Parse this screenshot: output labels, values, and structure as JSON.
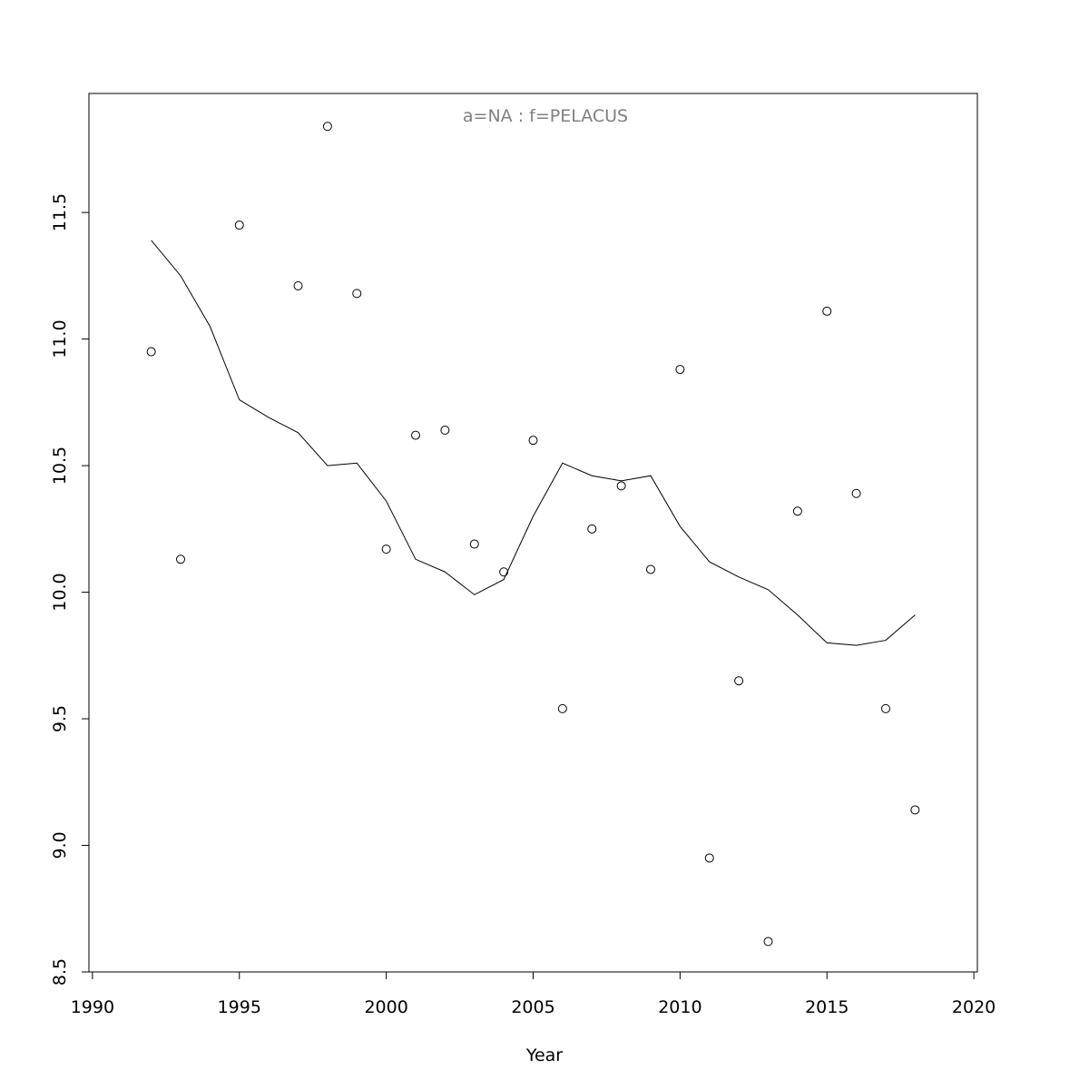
{
  "chart_data": {
    "type": "scatter",
    "title": "a=NA  :  f=PELACUS",
    "xlabel": "Year",
    "points": {
      "x": [
        1992,
        1993,
        1995,
        1997,
        1998,
        1999,
        2000,
        2001,
        2002,
        2003,
        2004,
        2005,
        2006,
        2007,
        2008,
        2009,
        2010,
        2011,
        2012,
        2013,
        2014,
        2015,
        2016,
        2017,
        2018
      ],
      "values": [
        10.95,
        10.13,
        11.45,
        11.21,
        11.84,
        11.18,
        10.17,
        10.62,
        10.64,
        10.19,
        10.08,
        10.6,
        9.54,
        10.25,
        10.42,
        10.09,
        10.88,
        8.95,
        9.65,
        8.62,
        10.32,
        11.11,
        10.39,
        9.54,
        9.14
      ]
    },
    "trend": {
      "x": [
        1992,
        1993,
        1994,
        1995,
        1996,
        1997,
        1998,
        1999,
        2000,
        2001,
        2002,
        2003,
        2004,
        2005,
        2006,
        2007,
        2008,
        2009,
        2010,
        2011,
        2012,
        2013,
        2014,
        2015,
        2016,
        2017,
        2018
      ],
      "values": [
        11.39,
        11.25,
        11.05,
        10.76,
        10.69,
        10.63,
        10.5,
        10.51,
        10.36,
        10.13,
        10.08,
        9.99,
        10.05,
        10.3,
        10.51,
        10.46,
        10.44,
        10.46,
        10.26,
        10.12,
        10.06,
        10.01,
        9.91,
        9.8,
        9.79,
        9.81,
        9.91
      ]
    },
    "xlim": [
      1989.88,
      2020.12
    ],
    "ylim": [
      8.5,
      11.97
    ],
    "xticks": [
      1990,
      1995,
      2000,
      2005,
      2010,
      2015,
      2020
    ],
    "yticks": [
      8.5,
      {
        "value": 9,
        "label": "9.0"
      },
      9.5,
      {
        "value": 10,
        "label": "10.0"
      },
      10.5,
      {
        "value": 11,
        "label": "11.0"
      },
      11.5
    ]
  }
}
